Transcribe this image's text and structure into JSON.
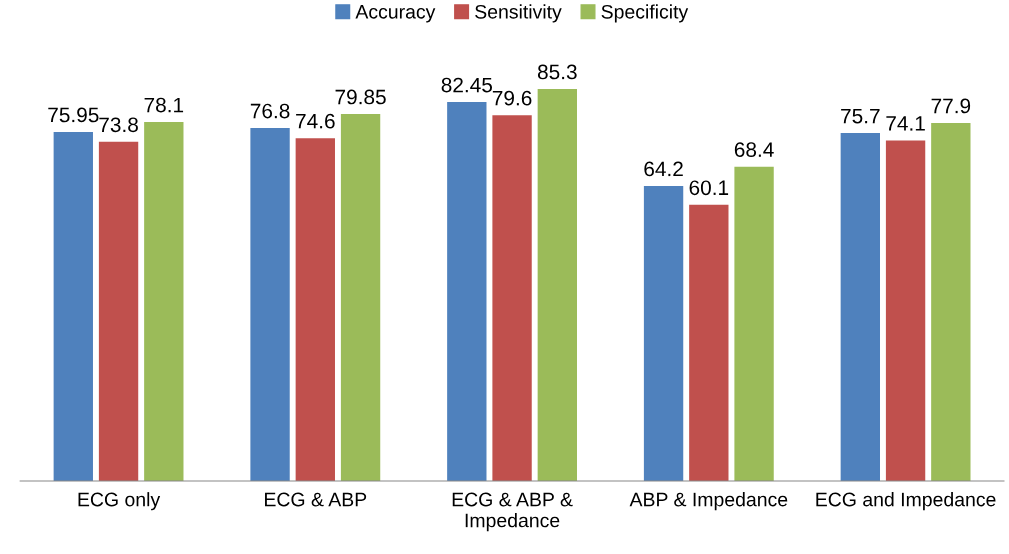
{
  "chart_data": {
    "type": "bar",
    "categories": [
      "ECG only",
      "ECG & ABP",
      "ECG & ABP &\nImpedance",
      "ABP & Impedance",
      "ECG and Impedance"
    ],
    "series": [
      {
        "name": "Accuracy",
        "color": "#4f81bd",
        "values": [
          75.95,
          76.8,
          82.45,
          64.2,
          75.7
        ]
      },
      {
        "name": "Sensitivity",
        "color": "#c0504d",
        "values": [
          73.8,
          74.6,
          79.6,
          60.1,
          74.1
        ]
      },
      {
        "name": "Specificity",
        "color": "#9bbb59",
        "values": [
          78.1,
          79.85,
          85.3,
          68.4,
          77.9
        ]
      }
    ],
    "data_labels": true,
    "legend": "top",
    "grid": false
  }
}
